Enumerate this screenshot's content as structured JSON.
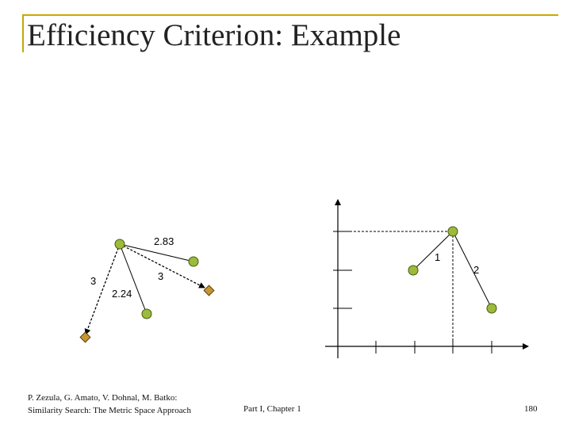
{
  "slide": {
    "title": "Efficiency Criterion: Example"
  },
  "diagram_left": {
    "labels": {
      "dist_top": "2.83",
      "dist_left": "3",
      "dist_middle": "3",
      "dist_bottom": "2.24"
    }
  },
  "diagram_right": {
    "labels": {
      "dist_1": "1",
      "dist_2": "2"
    }
  },
  "footer": {
    "authors_line1": "P. Zezula, G. Amato, V. Dohnal, M. Batko:",
    "authors_line2": "Similarity Search: The Metric Space Approach",
    "chapter": "Part I, Chapter 1",
    "page": "180"
  },
  "colors": {
    "frame_accent": "#c8a800",
    "green_point": "#9bbb3a",
    "orange_point": "#c9962e"
  }
}
